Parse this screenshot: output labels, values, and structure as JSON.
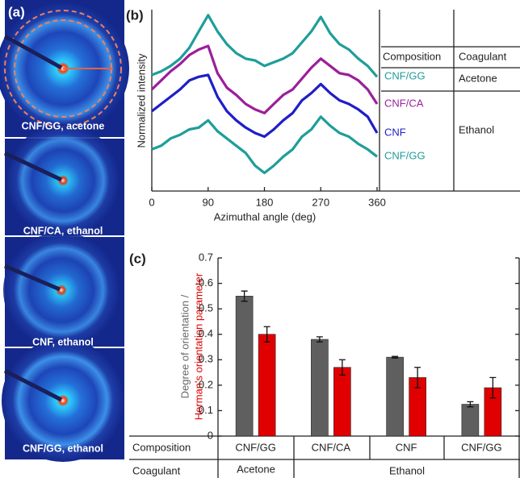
{
  "panel_labels": [
    "(a)",
    "(b)",
    "(c)"
  ],
  "images": [
    {
      "label": "CNF/GG, acetone"
    },
    {
      "label": "CNF/CA, ethanol"
    },
    {
      "label": "CNF, ethanol"
    },
    {
      "label": "CNF/GG, ethanol"
    }
  ],
  "chart_data": [
    {
      "type": "line",
      "xlabel": "Azimuthal angle (deg)",
      "ylabel": "Normalized intensity",
      "x": [
        0,
        15,
        30,
        45,
        60,
        75,
        90,
        105,
        120,
        135,
        150,
        165,
        180,
        195,
        210,
        225,
        240,
        255,
        270,
        285,
        300,
        315,
        330,
        345,
        360
      ],
      "xlim": [
        0,
        360
      ],
      "xticks": [
        0,
        90,
        180,
        270,
        360
      ],
      "ylim": [
        0,
        1
      ],
      "series": [
        {
          "name": "CNF/GG",
          "color": "#1f9e9a",
          "values": [
            0.64,
            0.66,
            0.69,
            0.73,
            0.79,
            0.88,
            0.97,
            0.88,
            0.81,
            0.76,
            0.73,
            0.72,
            0.69,
            0.71,
            0.73,
            0.76,
            0.82,
            0.88,
            0.96,
            0.87,
            0.81,
            0.78,
            0.73,
            0.69,
            0.63
          ]
        },
        {
          "name": "CNF/CA",
          "color": "#9b1f9b",
          "values": [
            0.56,
            0.61,
            0.66,
            0.7,
            0.75,
            0.78,
            0.8,
            0.65,
            0.57,
            0.53,
            0.48,
            0.45,
            0.43,
            0.48,
            0.53,
            0.56,
            0.62,
            0.68,
            0.73,
            0.69,
            0.65,
            0.64,
            0.61,
            0.56,
            0.48
          ]
        },
        {
          "name": "CNF",
          "color": "#1e1ec8",
          "values": [
            0.44,
            0.48,
            0.52,
            0.56,
            0.61,
            0.63,
            0.64,
            0.52,
            0.44,
            0.39,
            0.35,
            0.32,
            0.3,
            0.34,
            0.39,
            0.43,
            0.5,
            0.54,
            0.59,
            0.54,
            0.5,
            0.48,
            0.45,
            0.41,
            0.32
          ]
        },
        {
          "name": "CNF/GG",
          "color": "#1f9e9a",
          "values": [
            0.23,
            0.25,
            0.29,
            0.31,
            0.34,
            0.35,
            0.39,
            0.33,
            0.29,
            0.25,
            0.21,
            0.14,
            0.1,
            0.14,
            0.19,
            0.23,
            0.3,
            0.34,
            0.41,
            0.36,
            0.32,
            0.3,
            0.26,
            0.23,
            0.19
          ]
        }
      ],
      "table": {
        "headers": [
          "Composition",
          "Coagulant"
        ],
        "coagulants": [
          "Acetone",
          "Ethanol"
        ]
      }
    },
    {
      "type": "bar",
      "ylabel": [
        "Degree of orientation /",
        "Herman's orientation parameter"
      ],
      "categories": [
        "CNF/GG",
        "CNF/CA",
        "CNF",
        "CNF/GG"
      ],
      "ylim": [
        0,
        0.7
      ],
      "yticks": [
        0,
        0.1,
        0.2,
        0.3,
        0.4,
        0.5,
        0.6,
        0.7
      ],
      "series": [
        {
          "color": "#5f5f5f",
          "values": [
            0.55,
            0.38,
            0.31,
            0.125
          ],
          "errors": [
            0.02,
            0.01,
            0.003,
            0.01
          ]
        },
        {
          "color": "#e00000",
          "values": [
            0.4,
            0.27,
            0.23,
            0.19
          ],
          "errors": [
            0.03,
            0.03,
            0.04,
            0.04
          ]
        }
      ],
      "table": {
        "row_labels": [
          "Composition",
          "Coagulant"
        ],
        "coagulants": [
          "Acetone",
          "Ethanol"
        ]
      }
    }
  ]
}
